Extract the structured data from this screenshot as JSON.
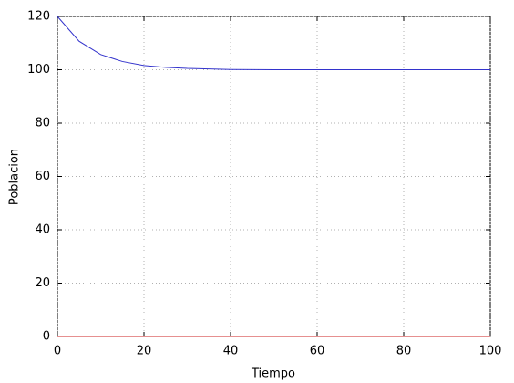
{
  "chart_data": {
    "type": "line",
    "x_label": "Tiempo",
    "y_label": "Poblacion",
    "x": [
      0,
      5,
      10,
      15,
      20,
      25,
      30,
      35,
      40,
      50,
      60,
      70,
      80,
      90,
      100
    ],
    "series": [
      {
        "color": "#3333cc",
        "values": [
          120,
          110.7,
          105.7,
          103.1,
          101.6,
          100.9,
          100.5,
          100.3,
          100.1,
          100.0,
          100.0,
          100.0,
          100.0,
          100.0,
          100.0
        ]
      },
      {
        "color": "#cc2222",
        "values": [
          0,
          0,
          0,
          0,
          0,
          0,
          0,
          0,
          0,
          0,
          0,
          0,
          0,
          0,
          0
        ]
      }
    ],
    "xlim": [
      0,
      100
    ],
    "xticks": [
      0,
      20,
      40,
      60,
      80,
      100
    ],
    "ylim": [
      0,
      120
    ],
    "yticks": [
      0,
      20,
      40,
      60,
      80,
      100,
      120
    ],
    "grid": true
  }
}
